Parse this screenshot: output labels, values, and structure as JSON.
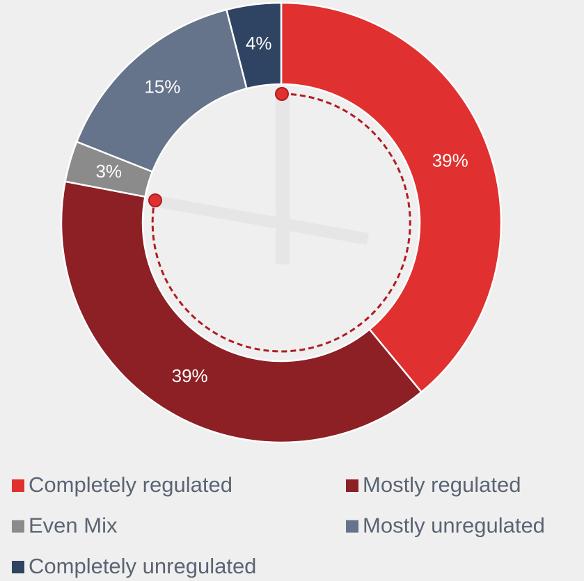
{
  "chart_data": {
    "type": "donut",
    "categories": [
      "Completely regulated",
      "Mostly regulated",
      "Even Mix",
      "Mostly unregulated",
      "Completely unregulated"
    ],
    "values": [
      39,
      39,
      3,
      15,
      4
    ],
    "value_labels": [
      "39%",
      "39%",
      "3%",
      "15%",
      "4%"
    ],
    "colors": [
      "#e0302f",
      "#8c2025",
      "#8b8b8b",
      "#65738b",
      "#2f4363"
    ],
    "legend": "bottom"
  }
}
